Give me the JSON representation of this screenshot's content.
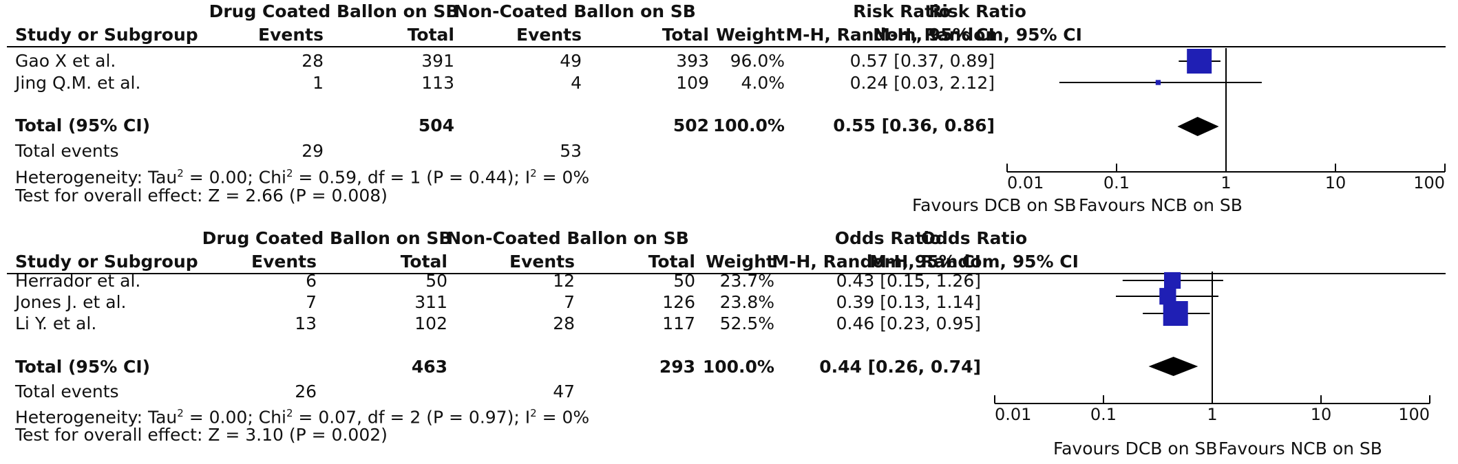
{
  "chart_data": [
    {
      "type": "forest",
      "group_header_1": "Drug Coated Ballon on SB",
      "group_header_2": "Non-Coated Ballon on SB",
      "measure_header": "Risk Ratio",
      "columns": {
        "study": "Study or Subgroup",
        "events_1": "Events",
        "total_1": "Total",
        "events_2": "Events",
        "total_2": "Total",
        "weight": "Weight",
        "method": "M-H, Random, 95% CI"
      },
      "studies": [
        {
          "name": "Gao X et al.",
          "events_1": "28",
          "total_1": "391",
          "events_2": "49",
          "total_2": "393",
          "weight": "96.0%",
          "ci_text": "0.57 [0.37, 0.89]",
          "est": 0.57,
          "lo": 0.37,
          "hi": 0.89,
          "w": 96.0
        },
        {
          "name": "Jing Q.M. et al.",
          "events_1": "1",
          "total_1": "113",
          "events_2": "4",
          "total_2": "109",
          "weight": "4.0%",
          "ci_text": "0.24 [0.03, 2.12]",
          "est": 0.24,
          "lo": 0.03,
          "hi": 2.12,
          "w": 4.0
        }
      ],
      "total": {
        "label": "Total (95% CI)",
        "total_1": "504",
        "total_2": "502",
        "weight": "100.0%",
        "ci_text": "0.55 [0.36, 0.86]",
        "est": 0.55,
        "lo": 0.36,
        "hi": 0.86
      },
      "total_events": {
        "label": "Total events",
        "events_1": "29",
        "events_2": "53"
      },
      "heterogeneity": {
        "prefix": "Heterogeneity: Tau",
        "tau": " = 0.00; Chi",
        "chi": " = 0.59, df = 1 (P = 0.44); I",
        "i2": " = 0%"
      },
      "overall_effect": "Test for overall effect: Z = 2.66 (P = 0.008)",
      "axis": {
        "scale": "log",
        "ticks": [
          0.01,
          0.1,
          1,
          10,
          100
        ],
        "tick_labels": [
          "0.01",
          "0.1",
          "1",
          "10",
          "100"
        ],
        "favours_left": "Favours DCB on SB",
        "favours_right": "Favours NCB on SB"
      }
    },
    {
      "type": "forest",
      "group_header_1": "Drug Coated Ballon on SB",
      "group_header_2": "Non-Coated Ballon on SB",
      "measure_header": "Odds Ratio",
      "columns": {
        "study": "Study or Subgroup",
        "events_1": "Events",
        "total_1": "Total",
        "events_2": "Events",
        "total_2": "Total",
        "weight": "Weight",
        "method": "M-H, Random, 95% CI"
      },
      "studies": [
        {
          "name": "Herrador et al.",
          "events_1": "6",
          "total_1": "50",
          "events_2": "12",
          "total_2": "50",
          "weight": "23.7%",
          "ci_text": "0.43 [0.15, 1.26]",
          "est": 0.43,
          "lo": 0.15,
          "hi": 1.26,
          "w": 23.7
        },
        {
          "name": "Jones J. et al.",
          "events_1": "7",
          "total_1": "311",
          "events_2": "7",
          "total_2": "126",
          "weight": "23.8%",
          "ci_text": "0.39 [0.13, 1.14]",
          "est": 0.39,
          "lo": 0.13,
          "hi": 1.14,
          "w": 23.8
        },
        {
          "name": "Li Y. et al.",
          "events_1": "13",
          "total_1": "102",
          "events_2": "28",
          "total_2": "117",
          "weight": "52.5%",
          "ci_text": "0.46 [0.23, 0.95]",
          "est": 0.46,
          "lo": 0.23,
          "hi": 0.95,
          "w": 52.5
        }
      ],
      "total": {
        "label": "Total (95% CI)",
        "total_1": "463",
        "total_2": "293",
        "weight": "100.0%",
        "ci_text": "0.44 [0.26, 0.74]",
        "est": 0.44,
        "lo": 0.26,
        "hi": 0.74
      },
      "total_events": {
        "label": "Total events",
        "events_1": "26",
        "events_2": "47"
      },
      "heterogeneity": {
        "prefix": "Heterogeneity: Tau",
        "tau": " = 0.00; Chi",
        "chi": " = 0.07, df = 2 (P = 0.97); I",
        "i2": " = 0%"
      },
      "overall_effect": "Test for overall effect: Z = 3.10 (P = 0.002)",
      "axis": {
        "scale": "log",
        "ticks": [
          0.01,
          0.1,
          1,
          10,
          100
        ],
        "tick_labels": [
          "0.01",
          "0.1",
          "1",
          "10",
          "100"
        ],
        "favours_left": "Favours DCB on SB",
        "favours_right": "Favours NCB on SB"
      }
    }
  ],
  "colors": {
    "marker": "#1f1fb4",
    "diamond": "#000000",
    "line": "#000000"
  }
}
